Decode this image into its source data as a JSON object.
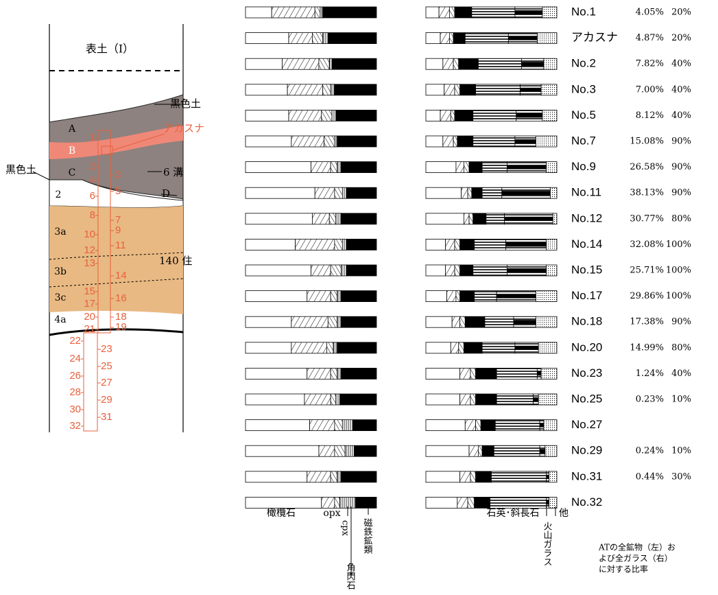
{
  "column": {
    "title": "表土（I）",
    "layers": [
      "A",
      "B",
      "C",
      "2",
      "3a",
      "3b",
      "3c",
      "4a"
    ],
    "side_labels": [
      "黒色土",
      "アカスナ",
      "黒色土",
      "6 溝",
      "D",
      "140 住"
    ],
    "samples": [
      1,
      2,
      3,
      4,
      5,
      6,
      7,
      8,
      9,
      10,
      11,
      12,
      13,
      14,
      15,
      16,
      17,
      18,
      19,
      20,
      21,
      22,
      23,
      24,
      25,
      26,
      27,
      28,
      29,
      30,
      31,
      32
    ]
  },
  "rows": [
    {
      "name": "No.1",
      "minerals": [
        20,
        33,
        4,
        2,
        41
      ],
      "glass": [
        10,
        8,
        4,
        13,
        33,
        21,
        11
      ],
      "ratio_minerals": "4.05%",
      "ratio_glass": "20%"
    },
    {
      "name": "アカスナ",
      "minerals": [
        33,
        18,
        8,
        4,
        37
      ],
      "glass": [
        11,
        7,
        3,
        9,
        33,
        22,
        15
      ],
      "ratio_minerals": "4.87%",
      "ratio_glass": "20%"
    },
    {
      "name": "No.2",
      "minerals": [
        28,
        28,
        8,
        2,
        34
      ],
      "glass": [
        13,
        8,
        4,
        15,
        33,
        17,
        10
      ],
      "ratio_minerals": "7.82%",
      "ratio_glass": "40%"
    },
    {
      "name": "No.3",
      "minerals": [
        32,
        27,
        6,
        3,
        32
      ],
      "glass": [
        14,
        8,
        4,
        12,
        34,
        16,
        12
      ],
      "ratio_minerals": "7.00%",
      "ratio_glass": "40%"
    },
    {
      "name": "No.5",
      "minerals": [
        33,
        25,
        8,
        3,
        31
      ],
      "glass": [
        11,
        8,
        3,
        14,
        33,
        20,
        11
      ],
      "ratio_minerals": "8.12%",
      "ratio_glass": "40%"
    },
    {
      "name": "No.7",
      "minerals": [
        35,
        25,
        8,
        2,
        30
      ],
      "glass": [
        13,
        8,
        3,
        12,
        32,
        16,
        16
      ],
      "ratio_minerals": "15.08%",
      "ratio_glass": "90%"
    },
    {
      "name": "No.9",
      "minerals": [
        50,
        15,
        5,
        3,
        27
      ],
      "glass": [
        23,
        6,
        4,
        10,
        19,
        30,
        8
      ],
      "ratio_minerals": "26.58%",
      "ratio_glass": "90%"
    },
    {
      "name": "No.11",
      "minerals": [
        53,
        15,
        6,
        3,
        23
      ],
      "glass": [
        27,
        5,
        3,
        8,
        15,
        37,
        5
      ],
      "ratio_minerals": "38.13%",
      "ratio_glass": "90%"
    },
    {
      "name": "No.12",
      "minerals": [
        51,
        13,
        5,
        4,
        27
      ],
      "glass": [
        29,
        4,
        3,
        10,
        14,
        37,
        3
      ],
      "ratio_minerals": "30.77%",
      "ratio_glass": "80%"
    },
    {
      "name": "No.14",
      "minerals": [
        38,
        30,
        6,
        3,
        23
      ],
      "glass": [
        15,
        7,
        4,
        11,
        24,
        31,
        8
      ],
      "ratio_minerals": "32.08%",
      "ratio_glass": "100%"
    },
    {
      "name": "No.15",
      "minerals": [
        50,
        15,
        8,
        4,
        23
      ],
      "glass": [
        15,
        7,
        4,
        10,
        26,
        30,
        8
      ],
      "ratio_minerals": "25.71%",
      "ratio_glass": "100%"
    },
    {
      "name": "No.17",
      "minerals": [
        47,
        18,
        5,
        3,
        27
      ],
      "glass": [
        16,
        7,
        3,
        11,
        17,
        30,
        16
      ],
      "ratio_minerals": "29.86%",
      "ratio_glass": "100%"
    },
    {
      "name": "No.18",
      "minerals": [
        35,
        28,
        7,
        3,
        27
      ],
      "glass": [
        20,
        6,
        4,
        15,
        22,
        17,
        16
      ],
      "ratio_minerals": "17.38%",
      "ratio_glass": "90%"
    },
    {
      "name": "No.20",
      "minerals": [
        35,
        27,
        5,
        3,
        30
      ],
      "glass": [
        19,
        6,
        4,
        14,
        25,
        18,
        14
      ],
      "ratio_minerals": "14.99%",
      "ratio_glass": "80%"
    },
    {
      "name": "No.23",
      "minerals": [
        47,
        18,
        5,
        3,
        27
      ],
      "glass": [
        26,
        8,
        4,
        16,
        31,
        3,
        12
      ],
      "ratio_minerals": "1.24%",
      "ratio_glass": "40%"
    },
    {
      "name": "No.25",
      "minerals": [
        45,
        20,
        4,
        3,
        28
      ],
      "glass": [
        26,
        8,
        4,
        16,
        28,
        4,
        14
      ],
      "ratio_minerals": "0.23%",
      "ratio_glass": "10%"
    },
    {
      "name": "No.27",
      "minerals": [
        49,
        19,
        6,
        8,
        18
      ],
      "glass": [
        30,
        8,
        4,
        11,
        34,
        3,
        10
      ]
    },
    {
      "name": "No.29",
      "minerals": [
        56,
        12,
        8,
        7,
        17
      ],
      "glass": [
        33,
        7,
        3,
        9,
        35,
        4,
        9
      ],
      "ratio_minerals": "0.24%",
      "ratio_glass": "10%"
    },
    {
      "name": "No.31",
      "minerals": [
        47,
        18,
        5,
        3,
        27
      ],
      "glass": [
        26,
        8,
        4,
        12,
        42,
        2,
        6
      ],
      "ratio_minerals": "0.44%",
      "ratio_glass": "30%"
    },
    {
      "name": "No.32",
      "minerals": [
        58,
        10,
        4,
        12,
        16
      ],
      "glass": [
        24,
        8,
        5,
        12,
        43,
        2,
        6
      ]
    }
  ],
  "legend": {
    "olivine": "橄欖石",
    "opx": "opx",
    "cpx": "cpx",
    "hornblende": "角閃石",
    "magnetite": "磁鉄鉱類",
    "quartz": "石英･斜長石",
    "other": "他",
    "glass": "火山ガラス"
  },
  "note": [
    "ATの全鉱物（左）お",
    "よび全ガラス（右）",
    "に対する比率"
  ]
}
